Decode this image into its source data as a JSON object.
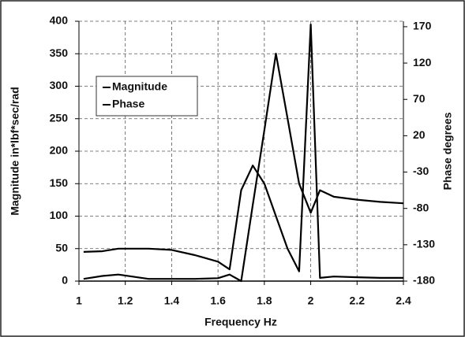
{
  "chart_data": {
    "type": "line",
    "x_label": "Frequency  Hz",
    "y_label": "Magnitude  in*lbf*sec/rad",
    "y2_label": "Phase  degrees",
    "x": [
      1.02,
      1.1,
      1.17,
      1.3,
      1.4,
      1.5,
      1.6,
      1.65,
      1.7,
      1.75,
      1.8,
      1.85,
      1.9,
      1.95,
      2.0,
      2.04,
      2.1,
      2.2,
      2.3,
      2.4
    ],
    "series": [
      {
        "name": "Magnitude",
        "color": "#000000",
        "values": [
          45,
          46,
          50,
          50,
          48,
          40,
          30,
          18,
          140,
          178,
          150,
          100,
          50,
          15,
          395,
          5,
          7,
          6,
          5,
          5
        ]
      },
      {
        "name": "Phase",
        "color": "#000000",
        "axis": "y2",
        "values": [
          -177,
          -173,
          -171,
          -177,
          -177,
          -177,
          -176,
          -171,
          -180,
          -75,
          28,
          133,
          44,
          -46,
          -86,
          -55,
          -64,
          -68,
          -71,
          -73
        ]
      }
    ],
    "xlim": [
      1,
      2.4
    ],
    "xticks": [
      1,
      1.2,
      1.4,
      1.6,
      1.8,
      2,
      2.2,
      2.4
    ],
    "ylim": [
      0,
      400
    ],
    "yticks": [
      0,
      50,
      100,
      150,
      200,
      250,
      300,
      350,
      400
    ],
    "y2lim": [
      -180,
      177.5
    ],
    "y2ticks": [
      -180,
      -130,
      -80,
      -30,
      20,
      70,
      120,
      170
    ],
    "grid": true,
    "legend": "upper left"
  }
}
